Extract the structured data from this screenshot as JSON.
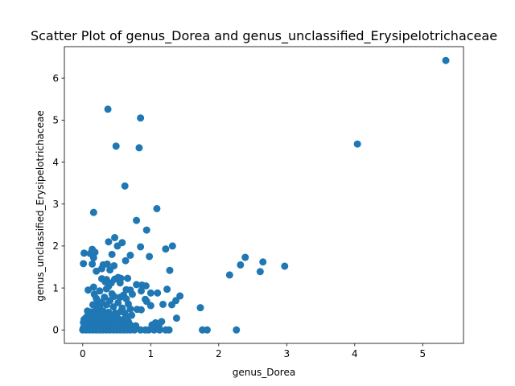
{
  "chart_data": {
    "type": "scatter",
    "title": "Scatter Plot of genus_Dorea and genus_unclassified_Erysipelotrichaceae",
    "xlabel": "genus_Dorea",
    "ylabel": "genus_unclassified_Erysipelotrichaceae",
    "xlim": [
      -0.27,
      5.6
    ],
    "ylim": [
      -0.32,
      6.75
    ],
    "xticks": [
      0,
      1,
      2,
      3,
      4,
      5
    ],
    "yticks": [
      0,
      1,
      2,
      3,
      4,
      5,
      6
    ],
    "grid": false,
    "legend": "none",
    "marker_color": "#1f77b4",
    "points": [
      [
        5.34,
        6.42
      ],
      [
        4.04,
        4.43
      ],
      [
        0.37,
        5.26
      ],
      [
        0.85,
        5.05
      ],
      [
        0.49,
        4.38
      ],
      [
        0.83,
        4.34
      ],
      [
        0.62,
        3.43
      ],
      [
        0.16,
        2.8
      ],
      [
        1.09,
        2.89
      ],
      [
        0.79,
        2.61
      ],
      [
        0.94,
        2.38
      ],
      [
        0.47,
        2.2
      ],
      [
        0.38,
        2.1
      ],
      [
        0.58,
        2.08
      ],
      [
        0.51,
        2.0
      ],
      [
        1.32,
        2.0
      ],
      [
        0.85,
        1.98
      ],
      [
        1.22,
        1.93
      ],
      [
        0.14,
        1.92
      ],
      [
        0.02,
        1.83
      ],
      [
        0.11,
        1.82
      ],
      [
        0.18,
        1.85
      ],
      [
        0.43,
        1.8
      ],
      [
        0.7,
        1.78
      ],
      [
        0.98,
        1.75
      ],
      [
        2.39,
        1.73
      ],
      [
        0.16,
        1.72
      ],
      [
        2.65,
        1.62
      ],
      [
        0.01,
        1.58
      ],
      [
        0.14,
        1.57
      ],
      [
        0.3,
        1.55
      ],
      [
        0.36,
        1.57
      ],
      [
        0.46,
        1.53
      ],
      [
        0.63,
        1.65
      ],
      [
        2.32,
        1.55
      ],
      [
        2.97,
        1.52
      ],
      [
        0.28,
        1.46
      ],
      [
        0.4,
        1.43
      ],
      [
        0.2,
        1.4
      ],
      [
        1.28,
        1.42
      ],
      [
        2.61,
        1.39
      ],
      [
        2.16,
        1.31
      ],
      [
        0.52,
        1.25
      ],
      [
        0.28,
        1.22
      ],
      [
        0.35,
        1.2
      ],
      [
        0.47,
        1.21
      ],
      [
        0.56,
        1.23
      ],
      [
        0.66,
        1.23
      ],
      [
        0.33,
        1.15
      ],
      [
        0.42,
        1.12
      ],
      [
        0.55,
        1.12
      ],
      [
        0.79,
        1.08
      ],
      [
        0.87,
        1.07
      ],
      [
        0.93,
        1.05
      ],
      [
        0.16,
        1.02
      ],
      [
        0.35,
        0.98
      ],
      [
        0.38,
        1.04
      ],
      [
        0.64,
        0.96
      ],
      [
        0.7,
        0.95
      ],
      [
        0.08,
        0.95
      ],
      [
        0.25,
        0.93
      ],
      [
        0.86,
        0.93
      ],
      [
        1.0,
        0.88
      ],
      [
        1.1,
        0.88
      ],
      [
        1.24,
        0.97
      ],
      [
        1.43,
        0.81
      ],
      [
        0.17,
        0.85
      ],
      [
        0.43,
        0.86
      ],
      [
        0.6,
        0.83
      ],
      [
        0.73,
        0.85
      ],
      [
        0.92,
        0.73
      ],
      [
        1.37,
        0.7
      ],
      [
        0.2,
        0.75
      ],
      [
        0.32,
        0.78
      ],
      [
        0.46,
        0.8
      ],
      [
        0.55,
        0.78
      ],
      [
        0.64,
        0.74
      ],
      [
        0.94,
        0.68
      ],
      [
        0.22,
        0.68
      ],
      [
        0.28,
        0.66
      ],
      [
        0.4,
        0.7
      ],
      [
        0.52,
        0.65
      ],
      [
        0.67,
        0.62
      ],
      [
        1.0,
        0.58
      ],
      [
        1.18,
        0.61
      ],
      [
        1.31,
        0.6
      ],
      [
        1.73,
        0.53
      ],
      [
        0.15,
        0.6
      ],
      [
        0.25,
        0.57
      ],
      [
        0.35,
        0.6
      ],
      [
        0.45,
        0.55
      ],
      [
        0.58,
        0.52
      ],
      [
        0.7,
        0.5
      ],
      [
        0.8,
        0.49
      ],
      [
        0.86,
        0.48
      ],
      [
        0.07,
        0.45
      ],
      [
        0.12,
        0.43
      ],
      [
        0.2,
        0.48
      ],
      [
        0.3,
        0.45
      ],
      [
        0.38,
        0.42
      ],
      [
        0.48,
        0.4
      ],
      [
        0.56,
        0.44
      ],
      [
        0.62,
        0.4
      ],
      [
        0.1,
        0.38
      ],
      [
        0.18,
        0.35
      ],
      [
        0.26,
        0.38
      ],
      [
        0.33,
        0.34
      ],
      [
        0.42,
        0.36
      ],
      [
        0.5,
        0.33
      ],
      [
        0.65,
        0.32
      ],
      [
        0.72,
        0.35
      ],
      [
        0.05,
        0.3
      ],
      [
        0.14,
        0.3
      ],
      [
        0.22,
        0.28
      ],
      [
        0.3,
        0.27
      ],
      [
        0.38,
        0.26
      ],
      [
        0.46,
        0.28
      ],
      [
        0.54,
        0.25
      ],
      [
        0.62,
        0.27
      ],
      [
        1.38,
        0.28
      ],
      [
        0.02,
        0.25
      ],
      [
        0.09,
        0.22
      ],
      [
        0.17,
        0.22
      ],
      [
        0.25,
        0.2
      ],
      [
        0.33,
        0.22
      ],
      [
        0.41,
        0.19
      ],
      [
        0.49,
        0.21
      ],
      [
        0.57,
        0.18
      ],
      [
        0.67,
        0.2
      ],
      [
        1.07,
        0.17
      ],
      [
        1.16,
        0.2
      ],
      [
        0.01,
        0.18
      ],
      [
        0.06,
        0.15
      ],
      [
        0.13,
        0.15
      ],
      [
        0.21,
        0.13
      ],
      [
        0.29,
        0.15
      ],
      [
        0.36,
        0.12
      ],
      [
        0.44,
        0.14
      ],
      [
        0.52,
        0.12
      ],
      [
        0.6,
        0.13
      ],
      [
        0.7,
        0.12
      ],
      [
        0.78,
        0.1
      ],
      [
        1.02,
        0.12
      ],
      [
        0.03,
        0.1
      ],
      [
        0.11,
        0.08
      ],
      [
        0.19,
        0.09
      ],
      [
        0.27,
        0.07
      ],
      [
        0.35,
        0.09
      ],
      [
        0.43,
        0.07
      ],
      [
        0.51,
        0.08
      ],
      [
        0.59,
        0.06
      ],
      [
        0.66,
        0.08
      ],
      [
        0.74,
        0.06
      ],
      [
        1.12,
        0.08
      ],
      [
        0.01,
        0.05
      ],
      [
        0.08,
        0.04
      ],
      [
        0.16,
        0.05
      ],
      [
        0.24,
        0.03
      ],
      [
        0.32,
        0.05
      ],
      [
        0.4,
        0.03
      ],
      [
        0.48,
        0.04
      ],
      [
        0.56,
        0.03
      ],
      [
        0.64,
        0.04
      ],
      [
        0.0,
        0.0
      ],
      [
        0.05,
        0.0
      ],
      [
        0.1,
        0.0
      ],
      [
        0.15,
        0.0
      ],
      [
        0.2,
        0.0
      ],
      [
        0.25,
        0.0
      ],
      [
        0.3,
        0.0
      ],
      [
        0.35,
        0.0
      ],
      [
        0.4,
        0.0
      ],
      [
        0.45,
        0.0
      ],
      [
        0.5,
        0.0
      ],
      [
        0.55,
        0.0
      ],
      [
        0.6,
        0.0
      ],
      [
        0.65,
        0.0
      ],
      [
        0.7,
        0.0
      ],
      [
        0.76,
        0.0
      ],
      [
        0.85,
        0.0
      ],
      [
        0.92,
        0.0
      ],
      [
        0.97,
        0.0
      ],
      [
        1.05,
        0.0
      ],
      [
        1.13,
        0.0
      ],
      [
        1.22,
        0.0
      ],
      [
        1.27,
        0.0
      ],
      [
        1.76,
        0.0
      ],
      [
        1.83,
        0.0
      ],
      [
        2.26,
        0.0
      ]
    ]
  }
}
